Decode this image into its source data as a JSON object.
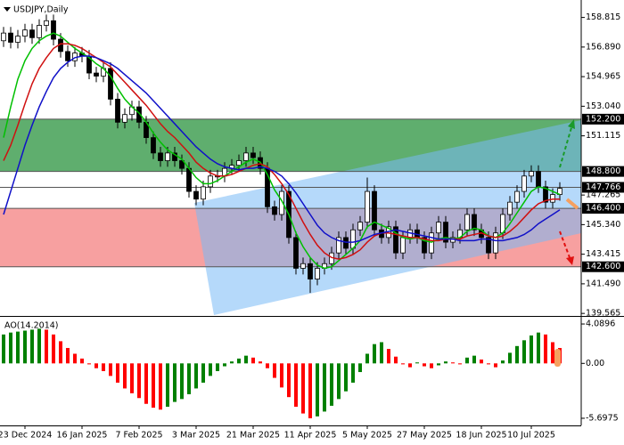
{
  "chart_data": {
    "type": "candlestick",
    "title": "USDJPY,Daily",
    "categories": [
      null,
      null,
      null,
      "23 Dec 2024",
      null,
      null,
      null,
      null,
      null,
      null,
      null,
      "16 Jan 2025",
      null,
      null,
      null,
      null,
      null,
      null,
      null,
      "7 Feb 2025",
      null,
      null,
      null,
      null,
      null,
      null,
      null,
      "3 Mar 2025",
      null,
      null,
      null,
      null,
      null,
      null,
      null,
      "21 Mar 2025",
      null,
      null,
      null,
      null,
      null,
      null,
      null,
      "11 Apr 2025",
      null,
      null,
      null,
      null,
      null,
      null,
      null,
      "5 May 2025",
      null,
      null,
      null,
      null,
      null,
      null,
      null,
      "27 May 2025",
      null,
      null,
      null,
      null,
      null,
      null,
      null,
      "18 Jun 2025",
      null,
      null,
      null,
      null,
      null,
      null,
      "10 Jul 2025",
      null,
      null,
      null,
      null
    ],
    "open": [
      157.3,
      157.8,
      157.2,
      157.6,
      158.0,
      157.5,
      158.3,
      158.6,
      157.4,
      156.6,
      156.0,
      156.5,
      156.3,
      155.2,
      155.0,
      155.5,
      153.5,
      152.0,
      152.5,
      153.0,
      152.0,
      151.0,
      150.0,
      149.5,
      150.0,
      149.5,
      149.0,
      147.5,
      147.0,
      147.8,
      148.5,
      148.5,
      149.0,
      149.2,
      149.5,
      150.0,
      149.7,
      149.0,
      146.5,
      146.0,
      147.5,
      144.5,
      142.5,
      142.8,
      141.8,
      142.5,
      142.8,
      143.5,
      144.5,
      143.8,
      145.0,
      145.5,
      147.5,
      145.0,
      144.5,
      145.2,
      143.5,
      144.5,
      145.0,
      144.5,
      143.5,
      144.8,
      145.5,
      144.2,
      144.5,
      145.0,
      146.0,
      145.0,
      144.5,
      143.5,
      144.8,
      146.0,
      146.8,
      147.5,
      148.5,
      148.8,
      147.8,
      146.8,
      147.3
    ],
    "high": [
      158.2,
      158.2,
      158.0,
      158.4,
      158.4,
      158.7,
      159.0,
      159.0,
      157.8,
      157.0,
      156.9,
      156.9,
      156.7,
      155.6,
      155.9,
      155.9,
      153.9,
      152.9,
      153.4,
      153.4,
      152.4,
      151.4,
      150.4,
      150.4,
      150.4,
      149.9,
      149.4,
      147.9,
      148.2,
      148.9,
      148.9,
      149.4,
      149.6,
      149.9,
      150.4,
      150.4,
      150.1,
      149.4,
      146.9,
      147.9,
      147.9,
      144.9,
      143.2,
      143.2,
      142.9,
      143.2,
      143.9,
      144.9,
      144.9,
      145.4,
      145.9,
      148.4,
      147.9,
      145.4,
      145.6,
      145.6,
      144.9,
      145.4,
      145.4,
      144.9,
      145.2,
      145.9,
      145.9,
      144.9,
      145.4,
      146.4,
      146.4,
      145.4,
      144.9,
      145.2,
      146.4,
      147.2,
      147.9,
      148.9,
      149.2,
      149.2,
      148.2,
      147.7,
      148.1
    ],
    "low": [
      156.9,
      156.8,
      156.8,
      157.2,
      157.1,
      157.1,
      157.9,
      157.0,
      156.2,
      155.6,
      155.6,
      155.9,
      154.8,
      154.6,
      154.6,
      153.1,
      151.6,
      151.6,
      152.1,
      151.6,
      150.6,
      149.6,
      149.1,
      149.1,
      149.1,
      148.6,
      147.1,
      146.6,
      146.6,
      147.4,
      148.1,
      148.1,
      148.6,
      148.8,
      149.1,
      149.3,
      148.6,
      146.1,
      145.6,
      145.6,
      144.1,
      142.1,
      142.1,
      140.9,
      141.4,
      142.1,
      142.4,
      143.1,
      143.4,
      143.4,
      144.6,
      145.1,
      144.6,
      144.1,
      144.1,
      143.1,
      143.1,
      144.1,
      144.1,
      143.1,
      143.1,
      144.4,
      143.8,
      143.8,
      144.1,
      144.6,
      144.6,
      144.1,
      143.1,
      143.1,
      144.4,
      145.6,
      146.4,
      147.1,
      148.1,
      147.4,
      146.4,
      146.4,
      146.9
    ],
    "close": [
      157.8,
      157.2,
      157.6,
      158.0,
      157.5,
      158.3,
      158.6,
      157.4,
      156.6,
      156.0,
      156.5,
      156.3,
      155.2,
      155.0,
      155.5,
      153.5,
      152.0,
      152.5,
      153.0,
      152.0,
      151.0,
      150.0,
      149.5,
      150.0,
      149.5,
      149.0,
      147.5,
      147.0,
      147.8,
      148.5,
      148.5,
      149.0,
      149.2,
      149.5,
      150.0,
      149.7,
      149.0,
      146.5,
      146.0,
      147.5,
      144.5,
      142.5,
      142.8,
      141.8,
      142.5,
      142.8,
      143.5,
      144.5,
      143.8,
      145.0,
      145.5,
      147.5,
      145.0,
      144.5,
      145.2,
      143.5,
      144.5,
      145.0,
      144.5,
      143.5,
      144.8,
      145.5,
      144.2,
      144.5,
      145.0,
      146.0,
      145.0,
      144.5,
      143.5,
      144.8,
      146.0,
      146.8,
      147.5,
      148.5,
      148.8,
      147.8,
      146.8,
      147.3,
      147.7
    ],
    "up_color": "#ffffff",
    "down_color": "#000000",
    "series": [
      {
        "color": "#00c000",
        "values": [
          151.0,
          153.0,
          154.8,
          156.0,
          156.8,
          157.3,
          157.6,
          157.8,
          157.6,
          157.2,
          156.8,
          156.5,
          156.2,
          155.8,
          155.5,
          155.0,
          154.2,
          153.5,
          153.0,
          152.6,
          152.0,
          151.3,
          150.7,
          150.2,
          149.9,
          149.6,
          149.0,
          148.4,
          148.0,
          148.0,
          148.2,
          148.5,
          148.8,
          149.1,
          149.4,
          149.6,
          149.4,
          148.6,
          147.6,
          146.9,
          146.0,
          144.8,
          143.9,
          143.2,
          142.7,
          142.5,
          142.6,
          143.0,
          143.4,
          143.8,
          144.3,
          145.2,
          145.5,
          145.3,
          145.1,
          144.8,
          144.5,
          144.4,
          144.5,
          144.3,
          144.2,
          144.4,
          144.5,
          144.4,
          144.5,
          144.9,
          145.1,
          145.0,
          144.6,
          144.5,
          144.8,
          145.4,
          146.1,
          146.8,
          147.5,
          147.8,
          147.7,
          147.5,
          147.3
        ]
      },
      {
        "color": "#d01010",
        "values": [
          149.5,
          150.5,
          151.8,
          153.2,
          154.5,
          155.5,
          156.2,
          156.8,
          157.1,
          157.1,
          157.0,
          156.8,
          156.5,
          156.2,
          155.9,
          155.6,
          155.1,
          154.6,
          154.1,
          153.6,
          153.1,
          152.5,
          151.9,
          151.4,
          151.0,
          150.5,
          150.0,
          149.4,
          149.0,
          148.7,
          148.5,
          148.5,
          148.6,
          148.8,
          149.0,
          149.2,
          149.3,
          149.1,
          148.6,
          148.0,
          147.3,
          146.4,
          145.5,
          144.7,
          144.0,
          143.5,
          143.2,
          143.1,
          143.2,
          143.4,
          143.7,
          144.2,
          144.6,
          144.8,
          144.8,
          144.7,
          144.6,
          144.5,
          144.5,
          144.4,
          144.3,
          144.3,
          144.4,
          144.4,
          144.4,
          144.6,
          144.7,
          144.8,
          144.6,
          144.5,
          144.6,
          144.9,
          145.3,
          145.8,
          146.3,
          146.7,
          146.9,
          147.0,
          147.0
        ]
      },
      {
        "color": "#1010c8",
        "values": [
          146.0,
          147.5,
          149.0,
          150.5,
          151.8,
          153.0,
          154.0,
          154.9,
          155.5,
          155.9,
          156.2,
          156.3,
          156.3,
          156.2,
          156.0,
          155.8,
          155.5,
          155.1,
          154.7,
          154.3,
          153.9,
          153.4,
          152.9,
          152.4,
          151.9,
          151.4,
          150.9,
          150.4,
          150.0,
          149.6,
          149.3,
          149.1,
          149.0,
          148.9,
          149.0,
          149.0,
          149.1,
          149.0,
          148.8,
          148.5,
          148.0,
          147.4,
          146.7,
          146.0,
          145.3,
          144.8,
          144.5,
          144.3,
          144.2,
          144.2,
          144.3,
          144.5,
          144.7,
          144.8,
          144.9,
          145.0,
          144.9,
          144.8,
          144.7,
          144.6,
          144.5,
          144.4,
          144.4,
          144.4,
          144.3,
          144.3,
          144.3,
          144.4,
          144.4,
          144.3,
          144.3,
          144.4,
          144.5,
          144.7,
          145.0,
          145.4,
          145.7,
          146.0,
          146.3
        ]
      }
    ],
    "ylim": [
      139.4,
      159.95
    ],
    "yticks": [
      {
        "value": 158.815,
        "label": "158.815"
      },
      {
        "value": 156.89,
        "label": "156.890"
      },
      {
        "value": 154.965,
        "label": "154.965"
      },
      {
        "value": 153.04,
        "label": "153.040"
      },
      {
        "value": 151.115,
        "label": "151.115"
      },
      {
        "value": 147.265,
        "label": "147.265"
      },
      {
        "value": 145.34,
        "label": "145.340"
      },
      {
        "value": 143.415,
        "label": "143.415"
      },
      {
        "value": 141.49,
        "label": "141.490"
      },
      {
        "value": 139.565,
        "label": "139.565"
      }
    ],
    "levels": [
      {
        "value": 152.2,
        "label": "152.200"
      },
      {
        "value": 148.8,
        "label": "148.800"
      },
      {
        "value": 147.766,
        "label": "147.766"
      },
      {
        "value": 146.4,
        "label": "146.400"
      },
      {
        "value": 142.6,
        "label": "142.600"
      }
    ],
    "zones": [
      {
        "from": 148.8,
        "to": 152.2,
        "color": "#5fae6e"
      },
      {
        "from": 142.6,
        "to": 146.4,
        "color": "#f7a0a0"
      }
    ],
    "indicator": {
      "type": "bar",
      "title": "AO(14.2014)",
      "values": [
        3.0,
        3.2,
        3.3,
        3.4,
        3.5,
        3.6,
        3.5,
        3.0,
        2.3,
        1.6,
        1.0,
        0.5,
        -0.1,
        -0.5,
        -0.8,
        -1.3,
        -2.0,
        -2.6,
        -3.1,
        -3.6,
        -4.2,
        -4.6,
        -4.8,
        -4.5,
        -4.0,
        -3.7,
        -3.2,
        -2.6,
        -2.0,
        -1.3,
        -0.8,
        -0.3,
        0.2,
        0.5,
        0.8,
        0.6,
        0.2,
        -0.5,
        -1.5,
        -2.5,
        -3.5,
        -4.5,
        -5.2,
        -5.7,
        -5.5,
        -5.0,
        -4.4,
        -3.7,
        -2.9,
        -2.0,
        -0.9,
        1.0,
        2.0,
        2.2,
        1.5,
        0.7,
        -0.1,
        -0.4,
        0.1,
        -0.3,
        -0.5,
        -0.2,
        0.2,
        0.1,
        -0.1,
        0.6,
        0.8,
        0.4,
        -0.1,
        -0.4,
        0.3,
        1.1,
        1.8,
        2.4,
        2.9,
        3.2,
        3.0,
        2.2,
        1.6
      ],
      "up_color": "#008000",
      "down_color": "#ff0000",
      "ylim": [
        -6.44,
        4.74
      ],
      "yticks": [
        {
          "value": 4.0896,
          "label": "4.0896"
        },
        {
          "value": 0,
          "label": "0.00"
        },
        {
          "value": -5.6975,
          "label": "-5.6975"
        }
      ]
    }
  }
}
